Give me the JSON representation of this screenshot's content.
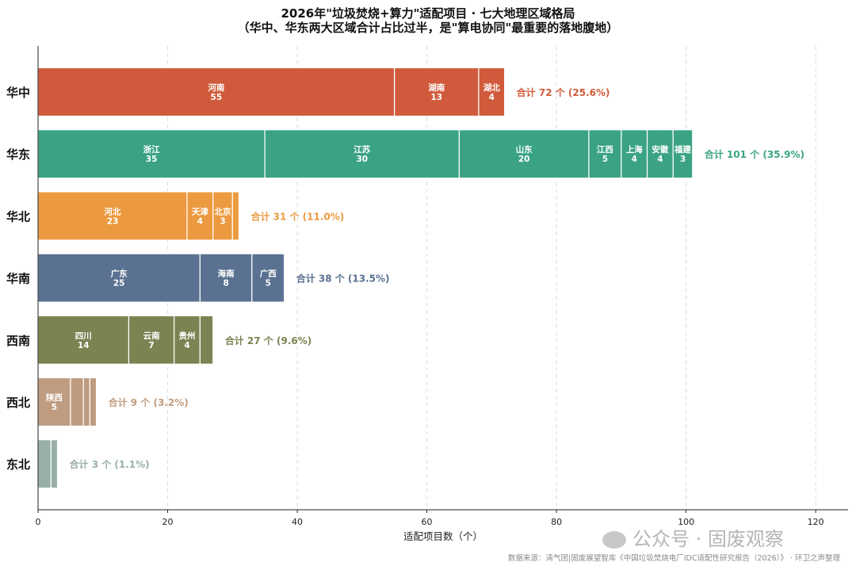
{
  "title": "2026年\"垃圾焚烧+算力\"适配项目 · 七大地理区域格局",
  "subtitle": "（华中、华东两大区域合计占比过半，是\"算电协同\"最重要的落地腹地）",
  "source": "数据来源：清气团|固废展望智库《中国垃圾焚烧电厂IDC适配性研究报告（2026）》 · 环卫之声整理",
  "watermark": "公众号 · 固废观察",
  "chart_data": {
    "type": "bar",
    "orientation": "horizontal",
    "stacked": true,
    "xlabel": "适配项目数（个）",
    "xlim": [
      0,
      125
    ],
    "xticks": [
      0,
      20,
      40,
      60,
      80,
      100,
      120
    ],
    "grid": "vertical dashed",
    "categories": [
      {
        "name": "华中",
        "color": "#d05b3c",
        "total_label": "合计 72 个 (25.6%)",
        "segments": [
          {
            "label": "河南",
            "value": 55
          },
          {
            "label": "湖南",
            "value": 13
          },
          {
            "label": "湖北",
            "value": 4
          }
        ]
      },
      {
        "name": "华东",
        "color": "#3ba384",
        "total_label": "合计 101 个 (35.9%)",
        "segments": [
          {
            "label": "浙江",
            "value": 35
          },
          {
            "label": "江苏",
            "value": 30
          },
          {
            "label": "山东",
            "value": 20
          },
          {
            "label": "江西",
            "value": 5
          },
          {
            "label": "上海",
            "value": 4
          },
          {
            "label": "安徽",
            "value": 4
          },
          {
            "label": "福建",
            "value": 3
          }
        ]
      },
      {
        "name": "华北",
        "color": "#ec9a40",
        "total_label": "合计 31 个 (11.0%)",
        "segments": [
          {
            "label": "河北",
            "value": 23
          },
          {
            "label": "天津",
            "value": 4
          },
          {
            "label": "北京",
            "value": 3
          },
          {
            "label": "",
            "value": 1
          }
        ]
      },
      {
        "name": "华南",
        "color": "#5a7191",
        "total_label": "合计 38 个 (13.5%)",
        "segments": [
          {
            "label": "广东",
            "value": 25
          },
          {
            "label": "海南",
            "value": 8
          },
          {
            "label": "广西",
            "value": 5
          }
        ]
      },
      {
        "name": "西南",
        "color": "#7a8452",
        "total_label": "合计 27 个 (9.6%)",
        "segments": [
          {
            "label": "四川",
            "value": 14
          },
          {
            "label": "云南",
            "value": 7
          },
          {
            "label": "贵州",
            "value": 4
          },
          {
            "label": "",
            "value": 2
          }
        ]
      },
      {
        "name": "西北",
        "color": "#bf9c80",
        "total_label": "合计 9 个 (3.2%)",
        "segments": [
          {
            "label": "陕西",
            "value": 5
          },
          {
            "label": "",
            "value": 2
          },
          {
            "label": "",
            "value": 1
          },
          {
            "label": "",
            "value": 1
          }
        ]
      },
      {
        "name": "东北",
        "color": "#98afa9",
        "total_label": "合计 3 个 (1.1%)",
        "segments": [
          {
            "label": "",
            "value": 2
          },
          {
            "label": "",
            "value": 1
          }
        ]
      }
    ]
  }
}
